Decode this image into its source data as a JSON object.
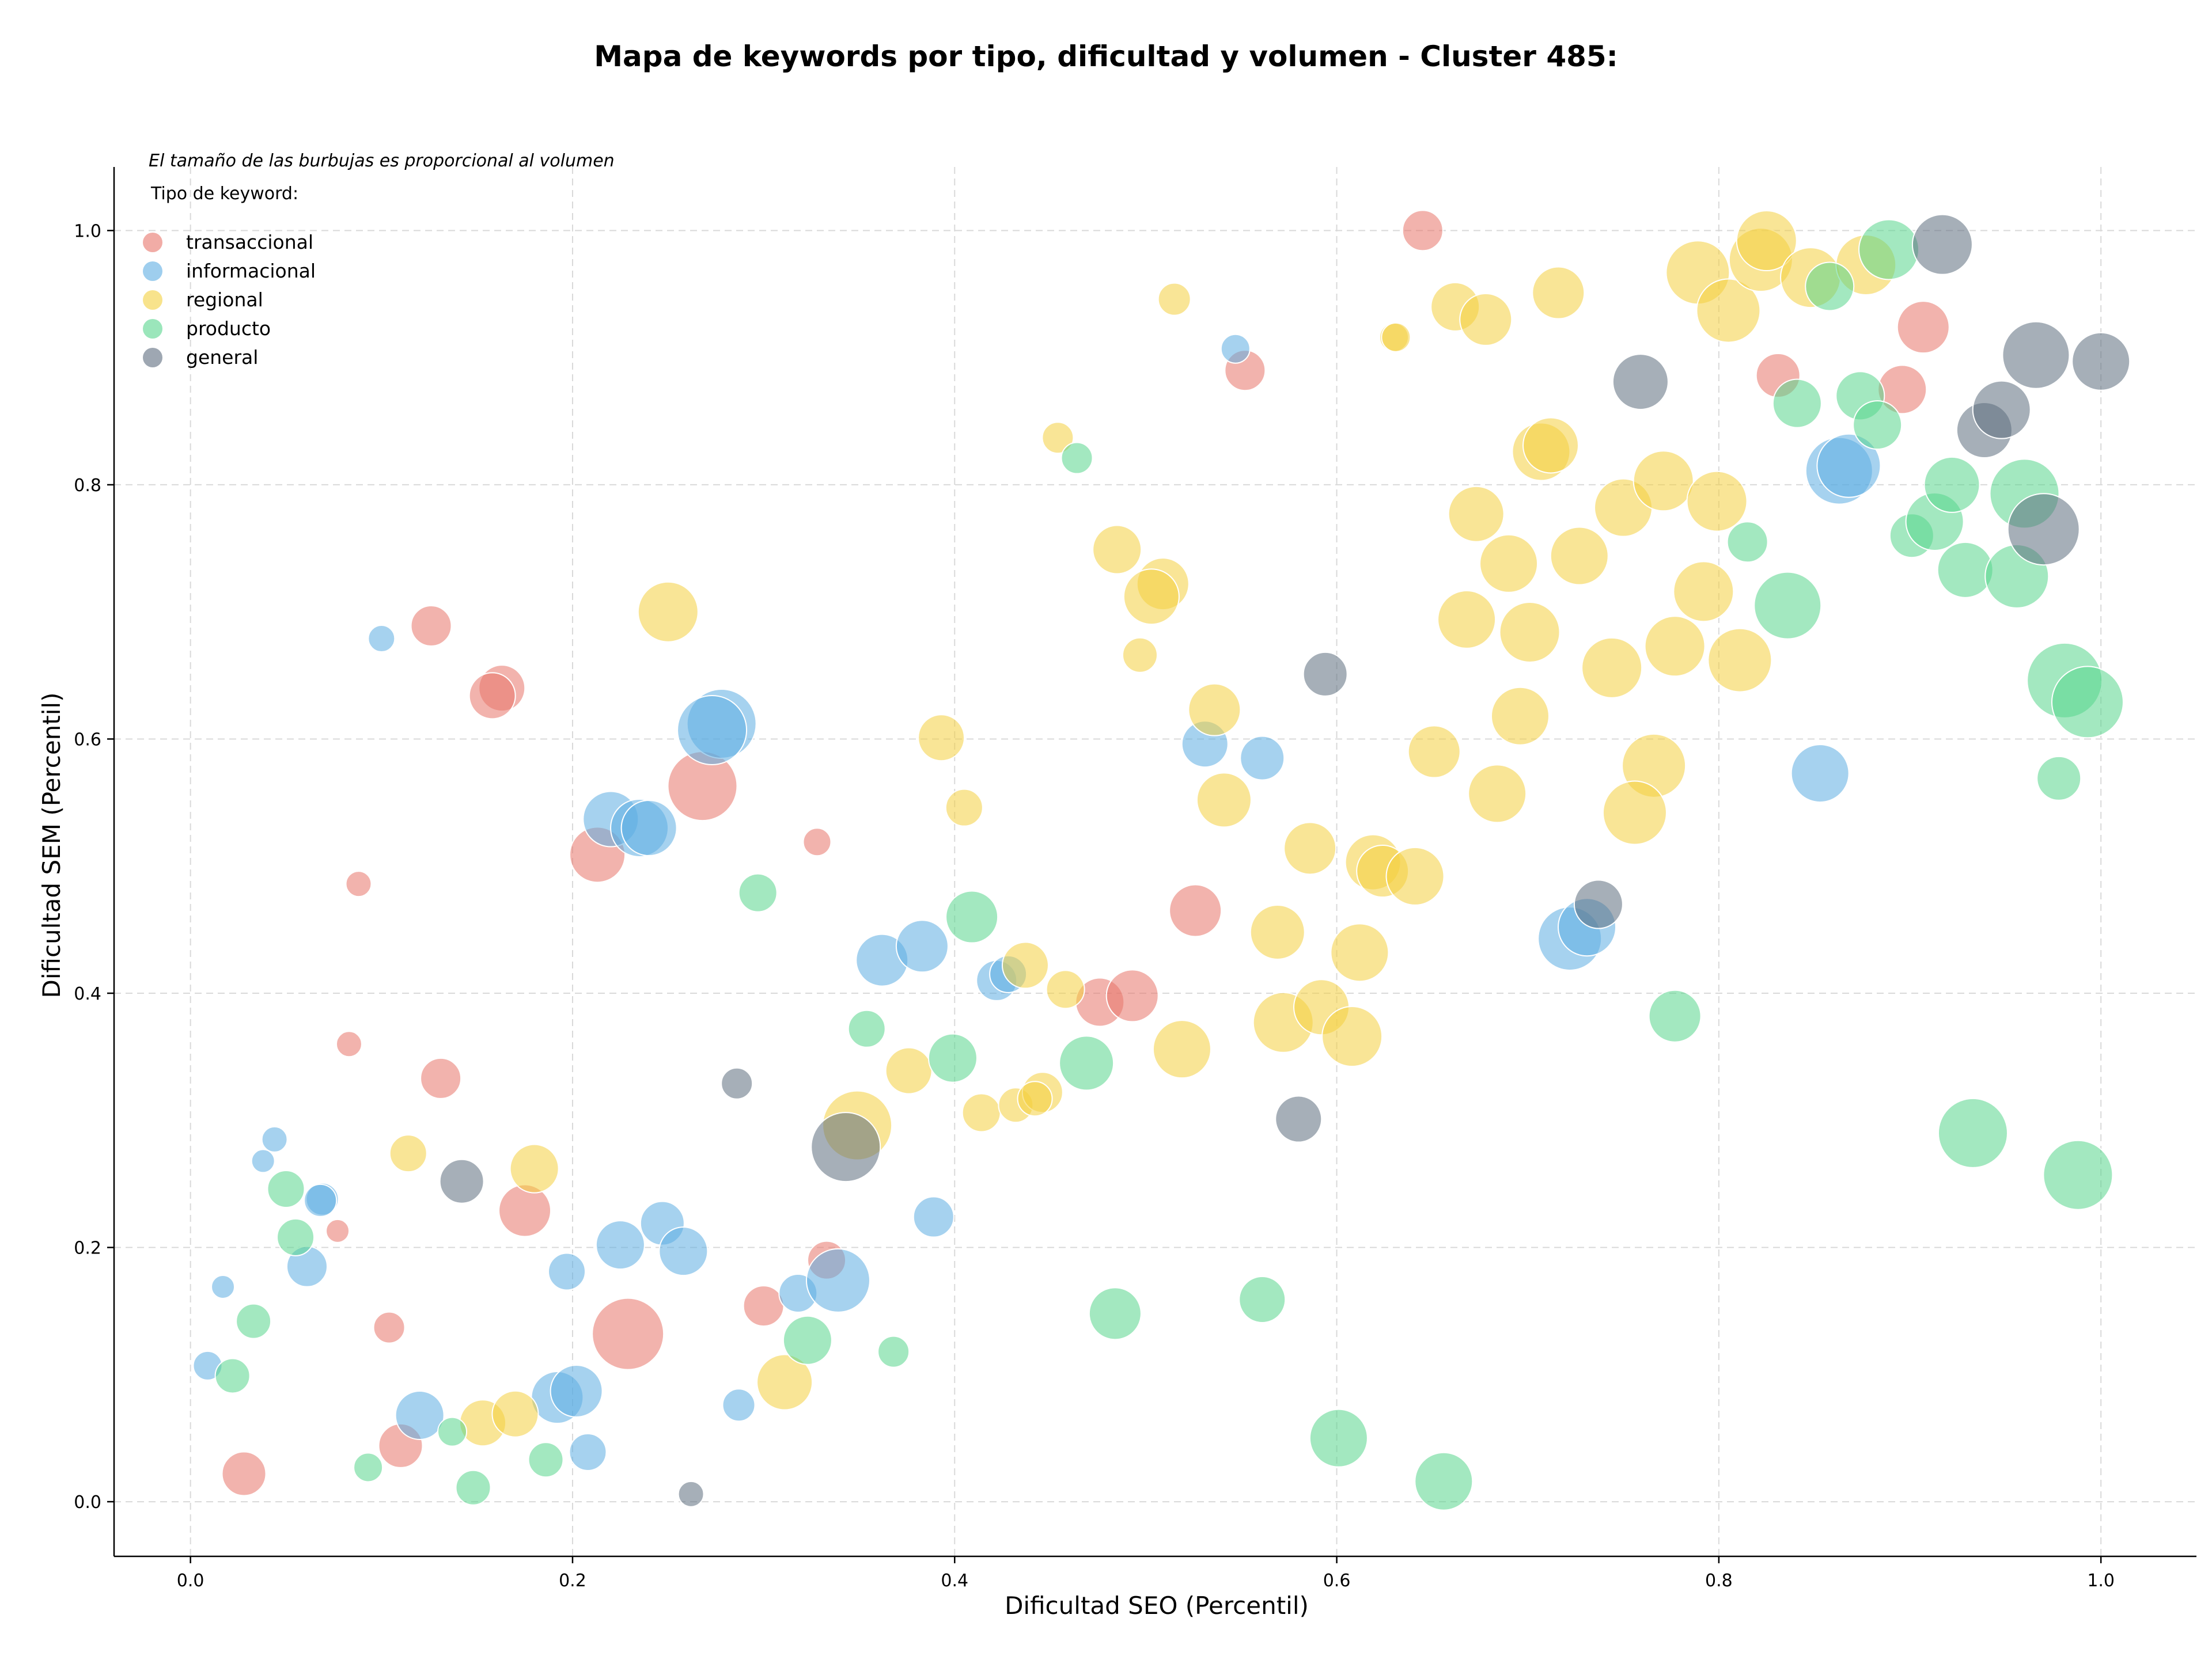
{
  "chart_data": {
    "type": "scatter",
    "title": "Mapa de keywords por tipo, dificultad y volumen - Cluster 485:",
    "xlabel": "Dificultad SEO (Percentil)",
    "ylabel": "Dificultad SEM (Percentil)",
    "note": "El tamaño de las burbujas es proporcional al volumen",
    "legend_title": "Tipo de keyword:",
    "legend_position": "top-left",
    "grid": true,
    "xlim": [
      -0.04,
      1.05
    ],
    "ylim": [
      -0.043,
      1.05
    ],
    "xticks": [
      "0.0",
      "0.2",
      "0.4",
      "0.6",
      "0.8",
      "1.0"
    ],
    "yticks": [
      "0.0",
      "0.2",
      "0.4",
      "0.6",
      "0.8",
      "1.0"
    ],
    "series": [
      {
        "name": "transaccional",
        "color": "#e8756a",
        "points": [
          {
            "x": 0.645,
            "y": 1.0,
            "r": 35
          },
          {
            "x": 0.552,
            "y": 0.89,
            "r": 35
          },
          {
            "x": 0.126,
            "y": 0.689,
            "r": 35
          },
          {
            "x": 0.163,
            "y": 0.64,
            "r": 40
          },
          {
            "x": 0.158,
            "y": 0.634,
            "r": 40
          },
          {
            "x": 0.268,
            "y": 0.563,
            "r": 60
          },
          {
            "x": 0.213,
            "y": 0.509,
            "r": 48
          },
          {
            "x": 0.088,
            "y": 0.486,
            "r": 22
          },
          {
            "x": 0.328,
            "y": 0.519,
            "r": 24
          },
          {
            "x": 0.526,
            "y": 0.465,
            "r": 45
          },
          {
            "x": 0.476,
            "y": 0.393,
            "r": 42
          },
          {
            "x": 0.493,
            "y": 0.398,
            "r": 45
          },
          {
            "x": 0.083,
            "y": 0.36,
            "r": 22
          },
          {
            "x": 0.131,
            "y": 0.333,
            "r": 35
          },
          {
            "x": 0.175,
            "y": 0.229,
            "r": 45
          },
          {
            "x": 0.077,
            "y": 0.213,
            "r": 20
          },
          {
            "x": 0.333,
            "y": 0.19,
            "r": 33
          },
          {
            "x": 0.3,
            "y": 0.154,
            "r": 35
          },
          {
            "x": 0.104,
            "y": 0.137,
            "r": 27
          },
          {
            "x": 0.229,
            "y": 0.132,
            "r": 62
          },
          {
            "x": 0.11,
            "y": 0.044,
            "r": 38
          },
          {
            "x": 0.028,
            "y": 0.022,
            "r": 38
          },
          {
            "x": 0.831,
            "y": 0.886,
            "r": 38
          },
          {
            "x": 0.896,
            "y": 0.875,
            "r": 42
          },
          {
            "x": 0.907,
            "y": 0.924,
            "r": 45
          }
        ]
      },
      {
        "name": "informacional",
        "color": "#5dade2",
        "points": [
          {
            "x": 0.547,
            "y": 0.907,
            "r": 25
          },
          {
            "x": 0.1,
            "y": 0.679,
            "r": 23
          },
          {
            "x": 0.278,
            "y": 0.612,
            "r": 60
          },
          {
            "x": 0.273,
            "y": 0.607,
            "r": 60
          },
          {
            "x": 0.22,
            "y": 0.537,
            "r": 48
          },
          {
            "x": 0.235,
            "y": 0.53,
            "r": 50
          },
          {
            "x": 0.24,
            "y": 0.53,
            "r": 48
          },
          {
            "x": 0.531,
            "y": 0.596,
            "r": 40
          },
          {
            "x": 0.561,
            "y": 0.585,
            "r": 38
          },
          {
            "x": 0.362,
            "y": 0.426,
            "r": 45
          },
          {
            "x": 0.383,
            "y": 0.437,
            "r": 45
          },
          {
            "x": 0.422,
            "y": 0.41,
            "r": 35
          },
          {
            "x": 0.428,
            "y": 0.415,
            "r": 32
          },
          {
            "x": 0.069,
            "y": 0.238,
            "r": 28
          },
          {
            "x": 0.068,
            "y": 0.237,
            "r": 28
          },
          {
            "x": 0.044,
            "y": 0.285,
            "r": 22
          },
          {
            "x": 0.038,
            "y": 0.268,
            "r": 20
          },
          {
            "x": 0.061,
            "y": 0.185,
            "r": 35
          },
          {
            "x": 0.017,
            "y": 0.169,
            "r": 20
          },
          {
            "x": 0.225,
            "y": 0.202,
            "r": 42
          },
          {
            "x": 0.247,
            "y": 0.219,
            "r": 38
          },
          {
            "x": 0.258,
            "y": 0.197,
            "r": 42
          },
          {
            "x": 0.197,
            "y": 0.181,
            "r": 32
          },
          {
            "x": 0.389,
            "y": 0.224,
            "r": 35
          },
          {
            "x": 0.318,
            "y": 0.164,
            "r": 33
          },
          {
            "x": 0.339,
            "y": 0.174,
            "r": 55
          },
          {
            "x": 0.009,
            "y": 0.107,
            "r": 25
          },
          {
            "x": 0.12,
            "y": 0.068,
            "r": 42
          },
          {
            "x": 0.192,
            "y": 0.082,
            "r": 45
          },
          {
            "x": 0.202,
            "y": 0.087,
            "r": 45
          },
          {
            "x": 0.208,
            "y": 0.039,
            "r": 32
          },
          {
            "x": 0.287,
            "y": 0.076,
            "r": 28
          },
          {
            "x": 0.722,
            "y": 0.443,
            "r": 55
          },
          {
            "x": 0.731,
            "y": 0.452,
            "r": 50
          },
          {
            "x": 0.853,
            "y": 0.573,
            "r": 50
          },
          {
            "x": 0.863,
            "y": 0.811,
            "r": 58
          },
          {
            "x": 0.868,
            "y": 0.815,
            "r": 55
          }
        ]
      },
      {
        "name": "regional",
        "color": "#f4d03f",
        "points": [
          {
            "x": 0.515,
            "y": 0.946,
            "r": 28
          },
          {
            "x": 0.63,
            "y": 0.916,
            "r": 25
          },
          {
            "x": 0.631,
            "y": 0.916,
            "r": 25
          },
          {
            "x": 0.662,
            "y": 0.94,
            "r": 42
          },
          {
            "x": 0.678,
            "y": 0.93,
            "r": 45
          },
          {
            "x": 0.716,
            "y": 0.951,
            "r": 45
          },
          {
            "x": 0.454,
            "y": 0.837,
            "r": 27
          },
          {
            "x": 0.707,
            "y": 0.826,
            "r": 50
          },
          {
            "x": 0.712,
            "y": 0.831,
            "r": 48
          },
          {
            "x": 0.673,
            "y": 0.777,
            "r": 48
          },
          {
            "x": 0.69,
            "y": 0.738,
            "r": 50
          },
          {
            "x": 0.727,
            "y": 0.744,
            "r": 50
          },
          {
            "x": 0.75,
            "y": 0.782,
            "r": 50
          },
          {
            "x": 0.771,
            "y": 0.803,
            "r": 52
          },
          {
            "x": 0.799,
            "y": 0.787,
            "r": 52
          },
          {
            "x": 0.792,
            "y": 0.716,
            "r": 52
          },
          {
            "x": 0.777,
            "y": 0.673,
            "r": 52
          },
          {
            "x": 0.811,
            "y": 0.662,
            "r": 55
          },
          {
            "x": 0.744,
            "y": 0.656,
            "r": 52
          },
          {
            "x": 0.668,
            "y": 0.694,
            "r": 50
          },
          {
            "x": 0.701,
            "y": 0.684,
            "r": 52
          },
          {
            "x": 0.696,
            "y": 0.618,
            "r": 50
          },
          {
            "x": 0.651,
            "y": 0.59,
            "r": 45
          },
          {
            "x": 0.684,
            "y": 0.557,
            "r": 50
          },
          {
            "x": 0.766,
            "y": 0.579,
            "r": 55
          },
          {
            "x": 0.756,
            "y": 0.542,
            "r": 55
          },
          {
            "x": 0.485,
            "y": 0.749,
            "r": 42
          },
          {
            "x": 0.509,
            "y": 0.722,
            "r": 45
          },
          {
            "x": 0.503,
            "y": 0.712,
            "r": 48
          },
          {
            "x": 0.497,
            "y": 0.666,
            "r": 30
          },
          {
            "x": 0.536,
            "y": 0.623,
            "r": 45
          },
          {
            "x": 0.25,
            "y": 0.7,
            "r": 52
          },
          {
            "x": 0.393,
            "y": 0.601,
            "r": 40
          },
          {
            "x": 0.405,
            "y": 0.546,
            "r": 32
          },
          {
            "x": 0.541,
            "y": 0.552,
            "r": 47
          },
          {
            "x": 0.586,
            "y": 0.514,
            "r": 45
          },
          {
            "x": 0.619,
            "y": 0.503,
            "r": 48
          },
          {
            "x": 0.624,
            "y": 0.496,
            "r": 45
          },
          {
            "x": 0.641,
            "y": 0.492,
            "r": 50
          },
          {
            "x": 0.569,
            "y": 0.448,
            "r": 47
          },
          {
            "x": 0.612,
            "y": 0.432,
            "r": 50
          },
          {
            "x": 0.437,
            "y": 0.422,
            "r": 40
          },
          {
            "x": 0.458,
            "y": 0.403,
            "r": 33
          },
          {
            "x": 0.572,
            "y": 0.377,
            "r": 52
          },
          {
            "x": 0.592,
            "y": 0.389,
            "r": 48
          },
          {
            "x": 0.608,
            "y": 0.366,
            "r": 52
          },
          {
            "x": 0.519,
            "y": 0.356,
            "r": 50
          },
          {
            "x": 0.376,
            "y": 0.339,
            "r": 40
          },
          {
            "x": 0.349,
            "y": 0.296,
            "r": 60
          },
          {
            "x": 0.414,
            "y": 0.306,
            "r": 33
          },
          {
            "x": 0.432,
            "y": 0.312,
            "r": 30
          },
          {
            "x": 0.446,
            "y": 0.322,
            "r": 35
          },
          {
            "x": 0.442,
            "y": 0.317,
            "r": 30
          },
          {
            "x": 0.114,
            "y": 0.274,
            "r": 32
          },
          {
            "x": 0.18,
            "y": 0.262,
            "r": 42
          },
          {
            "x": 0.311,
            "y": 0.094,
            "r": 48
          },
          {
            "x": 0.153,
            "y": 0.062,
            "r": 40
          },
          {
            "x": 0.17,
            "y": 0.069,
            "r": 40
          },
          {
            "x": 0.789,
            "y": 0.967,
            "r": 55
          },
          {
            "x": 0.805,
            "y": 0.937,
            "r": 55
          },
          {
            "x": 0.822,
            "y": 0.977,
            "r": 55
          },
          {
            "x": 0.825,
            "y": 0.992,
            "r": 52
          },
          {
            "x": 0.848,
            "y": 0.963,
            "r": 52
          },
          {
            "x": 0.877,
            "y": 0.973,
            "r": 52
          }
        ]
      },
      {
        "name": "producto",
        "color": "#58d68d",
        "points": [
          {
            "x": 0.464,
            "y": 0.821,
            "r": 27
          },
          {
            "x": 0.297,
            "y": 0.479,
            "r": 33
          },
          {
            "x": 0.409,
            "y": 0.46,
            "r": 45
          },
          {
            "x": 0.399,
            "y": 0.349,
            "r": 42
          },
          {
            "x": 0.354,
            "y": 0.372,
            "r": 32
          },
          {
            "x": 0.469,
            "y": 0.345,
            "r": 47
          },
          {
            "x": 0.05,
            "y": 0.246,
            "r": 32
          },
          {
            "x": 0.055,
            "y": 0.208,
            "r": 32
          },
          {
            "x": 0.033,
            "y": 0.142,
            "r": 30
          },
          {
            "x": 0.022,
            "y": 0.099,
            "r": 30
          },
          {
            "x": 0.323,
            "y": 0.127,
            "r": 42
          },
          {
            "x": 0.368,
            "y": 0.118,
            "r": 27
          },
          {
            "x": 0.137,
            "y": 0.055,
            "r": 25
          },
          {
            "x": 0.093,
            "y": 0.027,
            "r": 25
          },
          {
            "x": 0.148,
            "y": 0.011,
            "r": 30
          },
          {
            "x": 0.186,
            "y": 0.033,
            "r": 30
          },
          {
            "x": 0.484,
            "y": 0.148,
            "r": 45
          },
          {
            "x": 0.561,
            "y": 0.159,
            "r": 40
          },
          {
            "x": 0.601,
            "y": 0.05,
            "r": 50
          },
          {
            "x": 0.656,
            "y": 0.016,
            "r": 50
          },
          {
            "x": 0.777,
            "y": 0.382,
            "r": 45
          },
          {
            "x": 0.815,
            "y": 0.755,
            "r": 35
          },
          {
            "x": 0.836,
            "y": 0.705,
            "r": 58
          },
          {
            "x": 0.841,
            "y": 0.864,
            "r": 42
          },
          {
            "x": 0.858,
            "y": 0.956,
            "r": 42
          },
          {
            "x": 0.874,
            "y": 0.87,
            "r": 42
          },
          {
            "x": 0.883,
            "y": 0.847,
            "r": 42
          },
          {
            "x": 0.889,
            "y": 0.985,
            "r": 52
          },
          {
            "x": 0.901,
            "y": 0.76,
            "r": 38
          },
          {
            "x": 0.913,
            "y": 0.771,
            "r": 50
          },
          {
            "x": 0.922,
            "y": 0.8,
            "r": 48
          },
          {
            "x": 0.929,
            "y": 0.733,
            "r": 48
          },
          {
            "x": 0.956,
            "y": 0.728,
            "r": 55
          },
          {
            "x": 0.96,
            "y": 0.793,
            "r": 60
          },
          {
            "x": 0.981,
            "y": 0.646,
            "r": 65
          },
          {
            "x": 0.993,
            "y": 0.629,
            "r": 62
          },
          {
            "x": 0.978,
            "y": 0.569,
            "r": 38
          },
          {
            "x": 0.933,
            "y": 0.29,
            "r": 60
          },
          {
            "x": 0.988,
            "y": 0.257,
            "r": 60
          }
        ]
      },
      {
        "name": "general",
        "color": "#5d6d7e",
        "points": [
          {
            "x": 0.594,
            "y": 0.651,
            "r": 38
          },
          {
            "x": 0.286,
            "y": 0.329,
            "r": 27
          },
          {
            "x": 0.343,
            "y": 0.279,
            "r": 60
          },
          {
            "x": 0.142,
            "y": 0.252,
            "r": 38
          },
          {
            "x": 0.262,
            "y": 0.006,
            "r": 22
          },
          {
            "x": 0.58,
            "y": 0.301,
            "r": 40
          },
          {
            "x": 0.737,
            "y": 0.47,
            "r": 42
          },
          {
            "x": 0.759,
            "y": 0.881,
            "r": 48
          },
          {
            "x": 0.917,
            "y": 0.989,
            "r": 52
          },
          {
            "x": 0.939,
            "y": 0.843,
            "r": 48
          },
          {
            "x": 0.948,
            "y": 0.859,
            "r": 50
          },
          {
            "x": 0.966,
            "y": 0.902,
            "r": 58
          },
          {
            "x": 0.97,
            "y": 0.765,
            "r": 62
          },
          {
            "x": 1.0,
            "y": 0.897,
            "r": 50
          }
        ]
      }
    ]
  }
}
